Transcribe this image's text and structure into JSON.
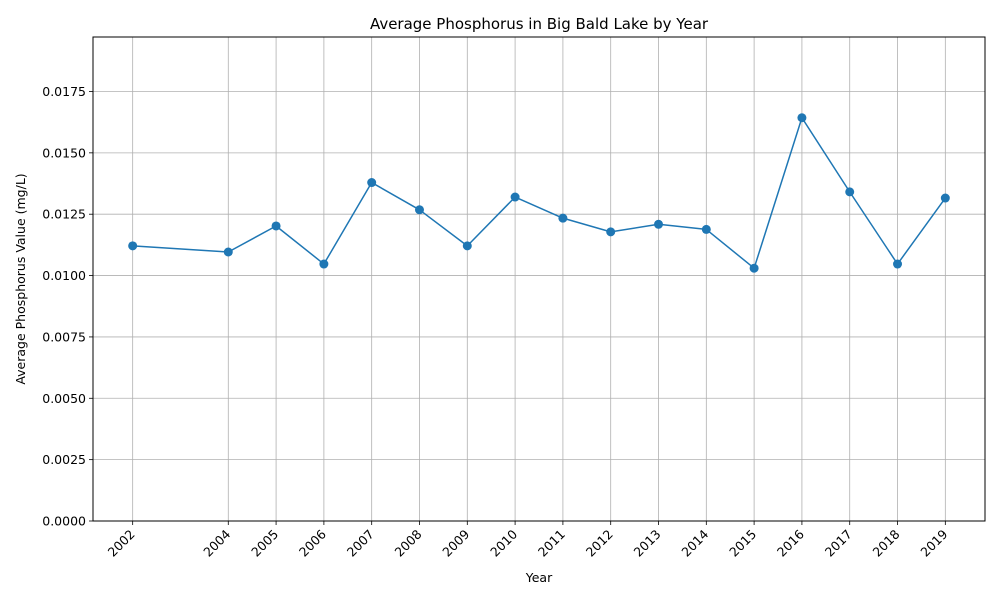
{
  "chart_data": {
    "type": "line",
    "title": "Average Phosphorus in Big Bald Lake by Year",
    "xlabel": "Year",
    "ylabel": "Average Phosphorus Value (mg/L)",
    "x": [
      2002,
      2004,
      2005,
      2006,
      2007,
      2008,
      2009,
      2010,
      2011,
      2012,
      2013,
      2014,
      2015,
      2016,
      2017,
      2018,
      2019
    ],
    "series": [
      {
        "values": [
          0.01121,
          0.01096,
          0.01202,
          0.01047,
          0.01379,
          0.01268,
          0.01121,
          0.0132,
          0.01234,
          0.01178,
          0.01209,
          0.01188,
          0.0103,
          0.01643,
          0.01341,
          0.01047,
          0.01316
        ],
        "color": "#1f77b4",
        "marker": "circle"
      }
    ],
    "xticks": [
      "2002",
      "2004",
      "2005",
      "2006",
      "2007",
      "2008",
      "2009",
      "2010",
      "2011",
      "2012",
      "2013",
      "2014",
      "2015",
      "2016",
      "2017",
      "2018",
      "2019"
    ],
    "yticks": [
      "0.0000",
      "0.0025",
      "0.0050",
      "0.0075",
      "0.0100",
      "0.0125",
      "0.0150",
      "0.0175"
    ],
    "xlim": [
      2001.17,
      2019.83
    ],
    "ylim": [
      0,
      0.01972
    ],
    "grid": true,
    "legend": "none"
  }
}
